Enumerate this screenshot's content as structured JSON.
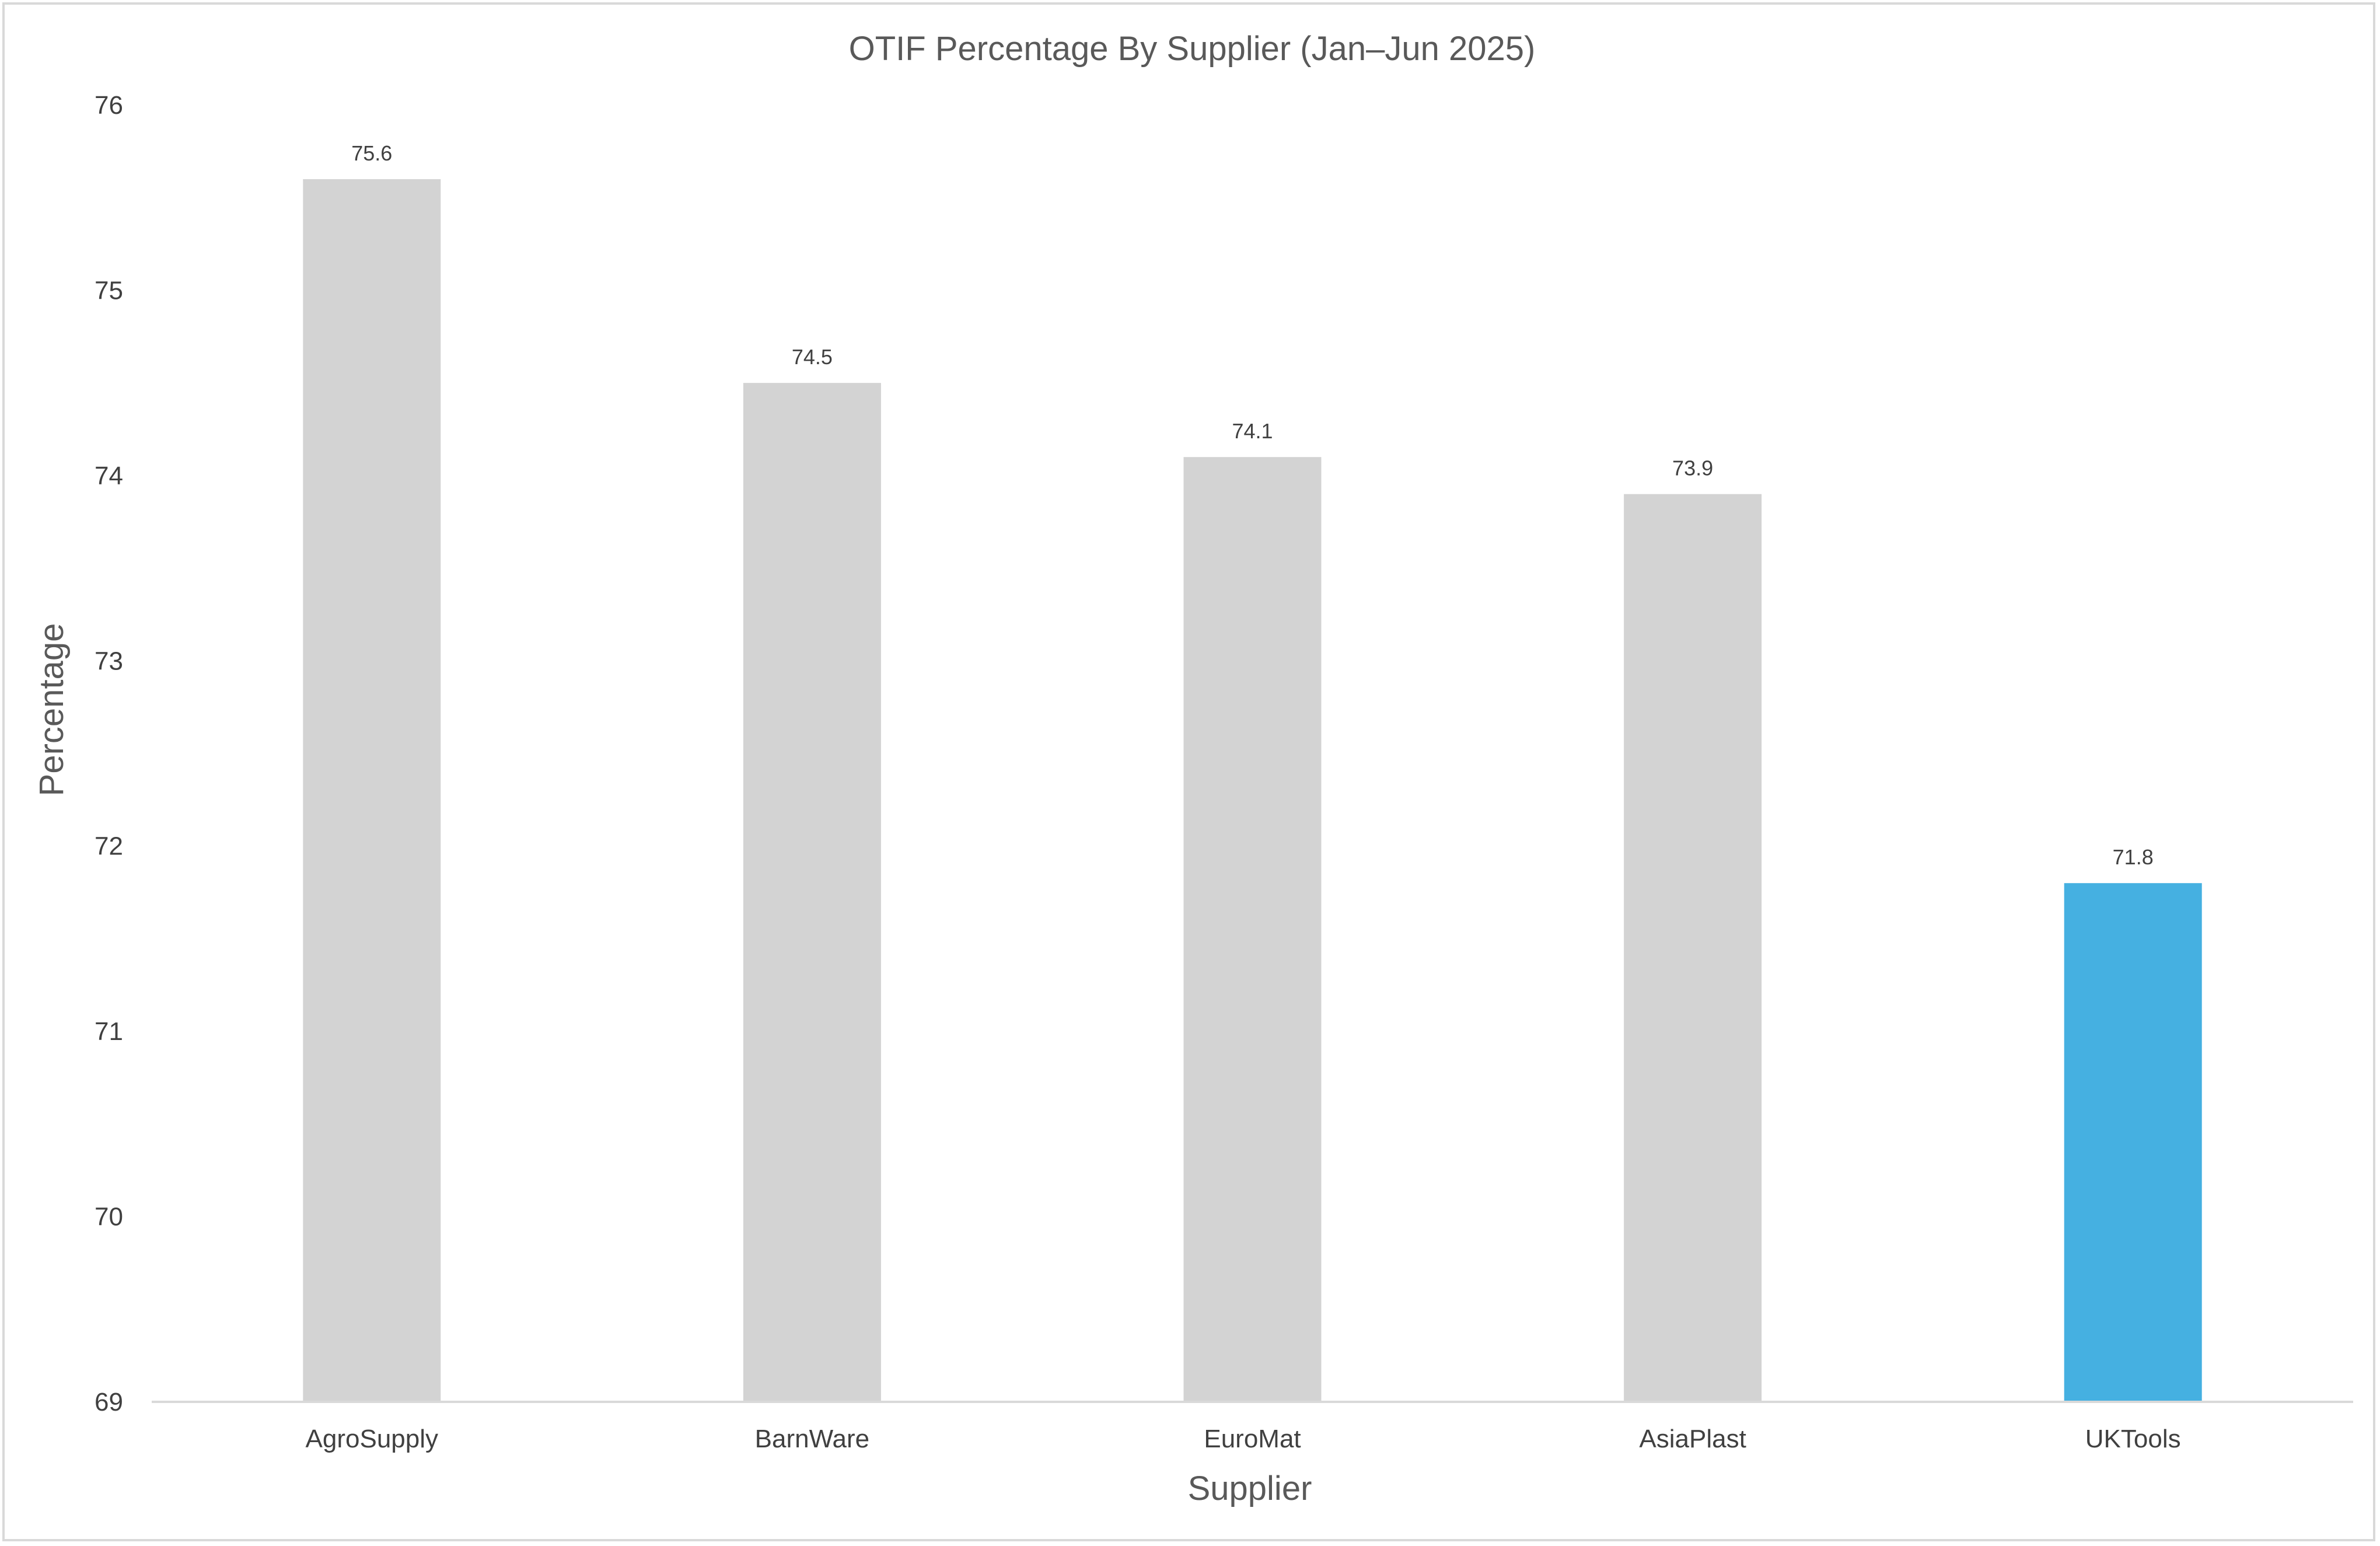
{
  "chart_data": {
    "type": "bar",
    "title": "OTIF Percentage By Supplier (Jan–Jun 2025)",
    "xlabel": "Supplier",
    "ylabel": "Percentage",
    "categories": [
      "AgroSupply",
      "BarnWare",
      "EuroMat",
      "AsiaPlast",
      "UKTools"
    ],
    "values": [
      75.6,
      74.5,
      74.1,
      73.9,
      71.8
    ],
    "data_labels": [
      "75.6",
      "74.5",
      "74.1",
      "73.9",
      "71.8"
    ],
    "ylim": [
      69,
      76
    ],
    "y_ticks": [
      69,
      70,
      71,
      72,
      73,
      74,
      75,
      76
    ],
    "grid": false,
    "legend": "none",
    "colors": {
      "default_bar": "#d3d3d3",
      "highlight_bar": "#45b0e1",
      "axis_line": "#d9d9d9",
      "text": "#595959"
    },
    "highlight_category": "UKTools"
  }
}
